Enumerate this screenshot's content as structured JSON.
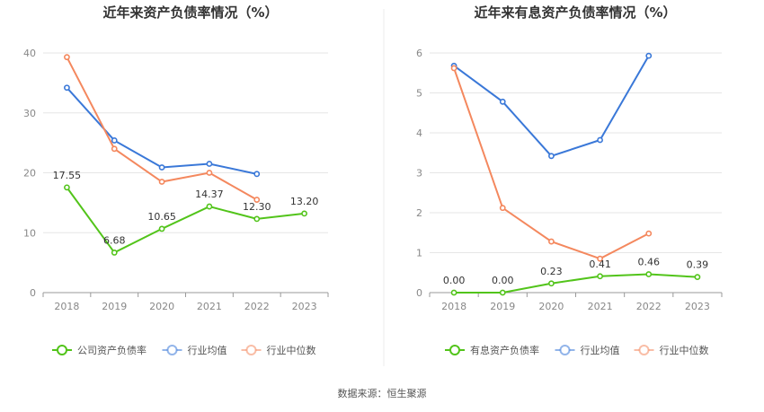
{
  "source": "数据来源：恒生聚源",
  "chart_data": [
    {
      "type": "line",
      "title": "近年来资产负债率情况（%）",
      "categories": [
        "2018",
        "2019",
        "2020",
        "2021",
        "2022",
        "2023"
      ],
      "ylim": [
        0,
        40
      ],
      "yticks": [
        "0",
        "10",
        "20",
        "30",
        "40"
      ],
      "grid": true,
      "legend_position": "bottom",
      "series": [
        {
          "name": "公司资产负债率",
          "color": "#52c41a",
          "values": [
            17.55,
            6.68,
            10.65,
            14.37,
            12.3,
            13.2
          ],
          "labels": [
            "17.55",
            "6.68",
            "10.65",
            "14.37",
            "12.30",
            "13.20"
          ]
        },
        {
          "name": "行业均值",
          "color": "#3a78d8",
          "values": [
            34.2,
            25.4,
            20.9,
            21.5,
            19.8,
            null
          ]
        },
        {
          "name": "行业中位数",
          "color": "#f4885e",
          "values": [
            39.3,
            24.0,
            18.5,
            20.0,
            15.5,
            null
          ]
        }
      ]
    },
    {
      "type": "line",
      "title": "近年来有息资产负债率情况（%）",
      "categories": [
        "2018",
        "2019",
        "2020",
        "2021",
        "2022",
        "2023"
      ],
      "ylim": [
        0,
        6
      ],
      "yticks": [
        "0",
        "1",
        "2",
        "3",
        "4",
        "5",
        "6"
      ],
      "grid": true,
      "legend_position": "bottom",
      "series": [
        {
          "name": "有息资产负债率",
          "color": "#52c41a",
          "values": [
            0.0,
            0.0,
            0.23,
            0.41,
            0.46,
            0.39
          ],
          "labels": [
            "0.00",
            "0.00",
            "0.23",
            "0.41",
            "0.46",
            "0.39"
          ]
        },
        {
          "name": "行业均值",
          "color": "#3a78d8",
          "values": [
            5.68,
            4.78,
            3.42,
            3.82,
            5.93,
            null
          ]
        },
        {
          "name": "行业中位数",
          "color": "#f4885e",
          "values": [
            5.62,
            2.12,
            1.28,
            0.85,
            1.48,
            null
          ]
        }
      ]
    }
  ]
}
